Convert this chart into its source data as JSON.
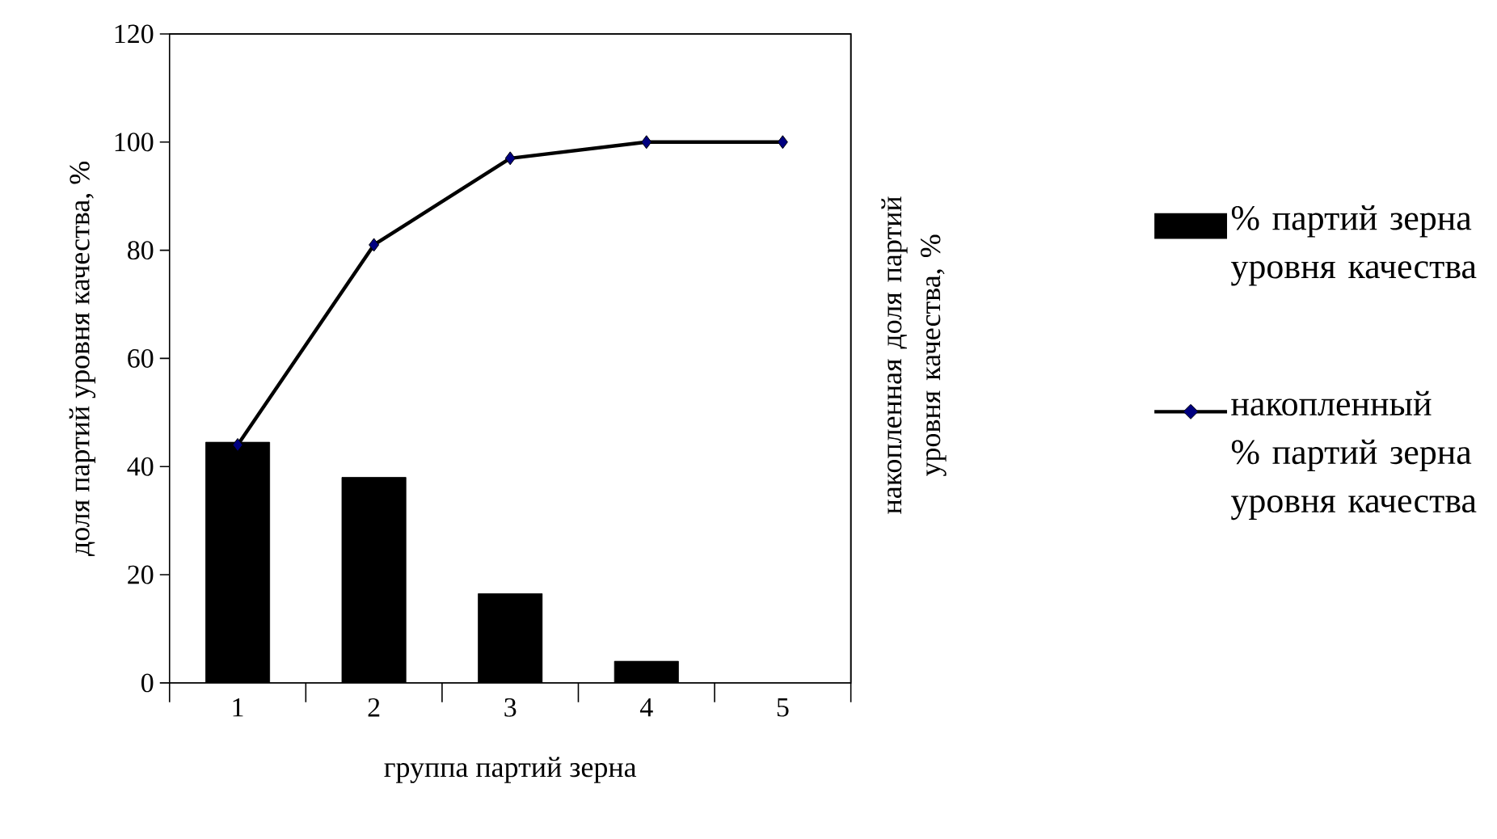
{
  "chart_data": {
    "type": "bar",
    "xlabel": "группа партий зерна",
    "ylabel": "доля партий уровня качества, %",
    "y2label": "накопленная доля партий уровня качества, %",
    "categories": [
      "1",
      "2",
      "3",
      "4",
      "5"
    ],
    "series": [
      {
        "name": "% партий зерна уровня качества",
        "color": "#000000",
        "values": [
          44.5,
          38,
          16.5,
          4,
          0
        ]
      },
      {
        "name": "накопленный % партий зерна уровня качества",
        "type": "line",
        "color": "#000000",
        "marker": "diamond",
        "values": [
          44,
          81,
          97,
          100,
          100
        ]
      }
    ],
    "ylim": [
      0,
      120
    ],
    "yticks": [
      0,
      20,
      40,
      60,
      80,
      100,
      120
    ],
    "grid": false,
    "legend": "right"
  }
}
